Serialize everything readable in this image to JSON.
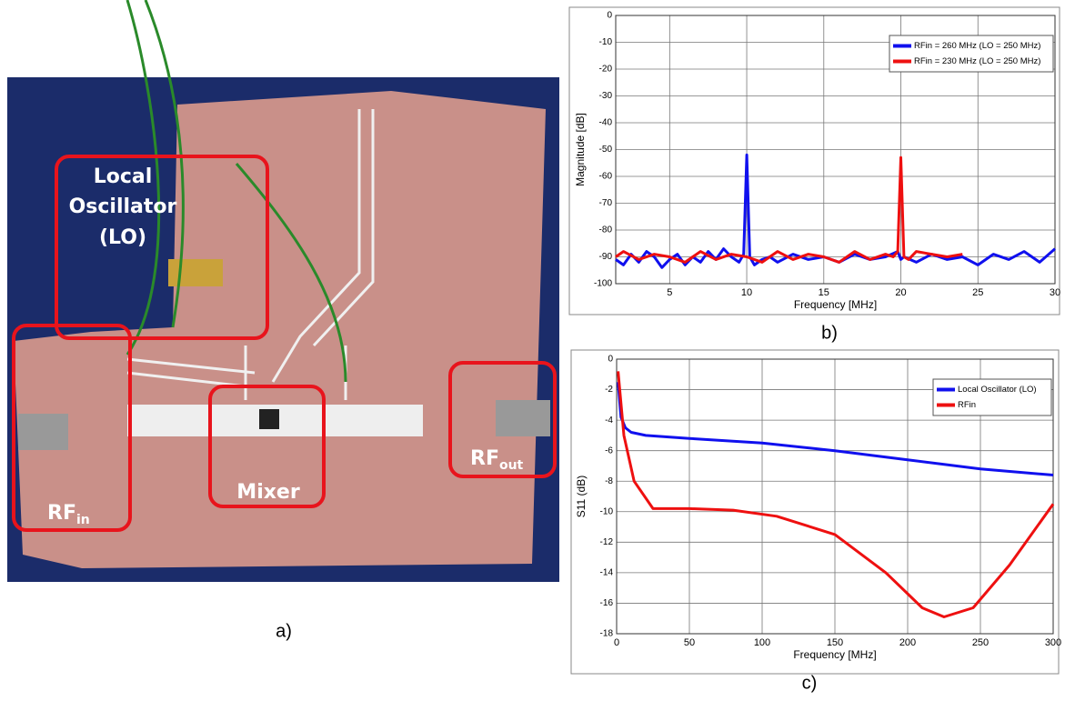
{
  "photo": {
    "labels": [
      {
        "lines": [
          "Local",
          "Oscillator",
          "(LO)"
        ]
      },
      {
        "lines": [
          "Mixer"
        ]
      },
      {
        "text": "RF",
        "sub": "in"
      },
      {
        "text": "RF",
        "sub": "out"
      }
    ],
    "caption": "a)"
  },
  "chart_data": [
    {
      "type": "line",
      "caption": "b)",
      "x_label": "Frequency [MHz]",
      "y_label": "Magnitude [dB]",
      "xlim": [
        1.5,
        30
      ],
      "xticks": [
        5,
        10,
        15,
        20,
        25,
        30
      ],
      "ylim": [
        -100,
        0
      ],
      "yticks": [
        0,
        -10,
        -20,
        -30,
        -40,
        -50,
        -60,
        -70,
        -80,
        -90,
        -100
      ],
      "grid": true,
      "legend": "upper right",
      "series": [
        {
          "name": "RFin = 260 MHz (LO = 250 MHz)",
          "color": "#1010ee",
          "x": [
            1.5,
            2,
            2.5,
            3,
            3.5,
            4,
            4.5,
            5,
            5.5,
            6,
            6.5,
            7,
            7.5,
            8,
            8.5,
            9,
            9.5,
            9.8,
            10,
            10.2,
            10.5,
            11,
            11.5,
            12,
            13,
            14,
            15,
            16,
            17,
            18,
            19,
            19.8,
            20,
            20.2,
            21,
            22,
            23,
            24,
            25,
            26,
            27,
            28,
            29,
            30
          ],
          "values": [
            -91,
            -93,
            -89,
            -92,
            -88,
            -90,
            -94,
            -91,
            -89,
            -93,
            -90,
            -92,
            -88,
            -91,
            -87,
            -90,
            -92,
            -89,
            -52,
            -90,
            -93,
            -91,
            -90,
            -92,
            -89,
            -91,
            -90,
            -92,
            -89,
            -91,
            -90,
            -88,
            -91,
            -90,
            -92,
            -89,
            -91,
            -90,
            -93,
            -89,
            -91,
            -88,
            -92,
            -87
          ]
        },
        {
          "name": "RFin = 230 MHz (LO = 250 MHz)",
          "color": "#ee1010",
          "x": [
            1.5,
            2,
            3,
            4,
            5,
            6,
            7,
            8,
            9,
            10,
            11,
            12,
            13,
            14,
            15,
            16,
            17,
            18,
            19,
            19.5,
            19.8,
            20,
            20.2,
            20.5,
            21,
            22,
            23,
            24
          ],
          "values": [
            -90,
            -88,
            -91,
            -89,
            -90,
            -92,
            -88,
            -91,
            -89,
            -90,
            -92,
            -88,
            -91,
            -89,
            -90,
            -92,
            -88,
            -91,
            -89,
            -90,
            -88,
            -53,
            -90,
            -91,
            -88,
            -89,
            -90,
            -89
          ]
        }
      ]
    },
    {
      "type": "line",
      "caption": "c)",
      "x_label": "Frequency [MHz]",
      "y_label": "S11 (dB)",
      "xlim": [
        0,
        300
      ],
      "xticks": [
        0,
        50,
        100,
        150,
        200,
        250,
        300
      ],
      "ylim": [
        -18,
        0
      ],
      "yticks": [
        0,
        -2,
        -4,
        -6,
        -8,
        -10,
        -12,
        -14,
        -16,
        -18
      ],
      "grid": true,
      "legend": "upper right",
      "series": [
        {
          "name": "Local Oscillator (LO)",
          "color": "#1010ee",
          "x": [
            1,
            3,
            6,
            10,
            20,
            50,
            100,
            150,
            200,
            250,
            300
          ],
          "values": [
            -1.5,
            -3.8,
            -4.5,
            -4.8,
            -5.0,
            -5.2,
            -5.5,
            -6.0,
            -6.6,
            -7.2,
            -7.6
          ]
        },
        {
          "name": "RFin",
          "color": "#ee1010",
          "x": [
            1,
            5,
            12,
            25,
            50,
            80,
            110,
            150,
            185,
            210,
            225,
            245,
            270,
            300
          ],
          "values": [
            -0.8,
            -5,
            -8,
            -9.8,
            -9.8,
            -9.9,
            -10.3,
            -11.5,
            -14,
            -16.3,
            -16.9,
            -16.3,
            -13.5,
            -9.5
          ]
        }
      ]
    }
  ]
}
